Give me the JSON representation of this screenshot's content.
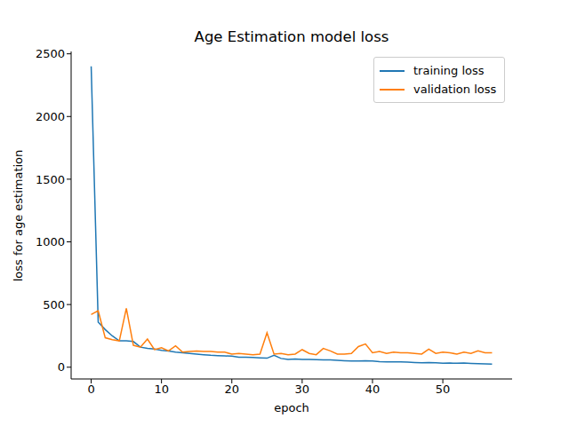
{
  "chart_data": {
    "type": "line",
    "title": "Age Estimation model loss",
    "x_label": "epoch",
    "y_label": "loss for age estimation",
    "x": [
      0,
      1,
      2,
      3,
      4,
      5,
      6,
      7,
      8,
      9,
      10,
      11,
      12,
      13,
      14,
      15,
      16,
      17,
      18,
      19,
      20,
      21,
      22,
      23,
      24,
      25,
      26,
      27,
      28,
      29,
      30,
      31,
      32,
      33,
      34,
      35,
      36,
      37,
      38,
      39,
      40,
      41,
      42,
      43,
      44,
      45,
      46,
      47,
      48,
      49,
      50,
      51,
      52,
      53,
      54,
      55,
      56,
      57
    ],
    "series": [
      {
        "name": "training loss",
        "color": "#1f77b4",
        "values": [
          2400,
          360,
          300,
          250,
          210,
          210,
          205,
          160,
          150,
          145,
          135,
          130,
          120,
          115,
          110,
          105,
          100,
          95,
          92,
          90,
          88,
          80,
          80,
          78,
          75,
          72,
          95,
          70,
          62,
          65,
          62,
          62,
          60,
          58,
          58,
          55,
          52,
          50,
          50,
          52,
          50,
          45,
          43,
          42,
          43,
          40,
          38,
          36,
          38,
          35,
          32,
          33,
          32,
          33,
          30,
          28,
          27,
          25
        ]
      },
      {
        "name": "validation loss",
        "color": "#ff7f0e",
        "values": [
          420,
          450,
          235,
          220,
          210,
          470,
          175,
          160,
          225,
          140,
          155,
          130,
          170,
          120,
          125,
          130,
          125,
          125,
          120,
          120,
          105,
          110,
          105,
          100,
          105,
          275,
          105,
          110,
          100,
          105,
          140,
          110,
          100,
          150,
          130,
          105,
          105,
          110,
          165,
          185,
          115,
          125,
          110,
          120,
          115,
          115,
          110,
          105,
          145,
          110,
          120,
          115,
          105,
          120,
          110,
          130,
          115,
          115
        ]
      }
    ],
    "xlim": [
      -2.85,
      59.85
    ],
    "ylim": [
      -93.75,
      2518.75
    ],
    "xticks": [
      0,
      10,
      20,
      30,
      40,
      50
    ],
    "yticks": [
      0,
      500,
      1000,
      1500,
      2000,
      2500
    ],
    "legend": "upper right"
  }
}
